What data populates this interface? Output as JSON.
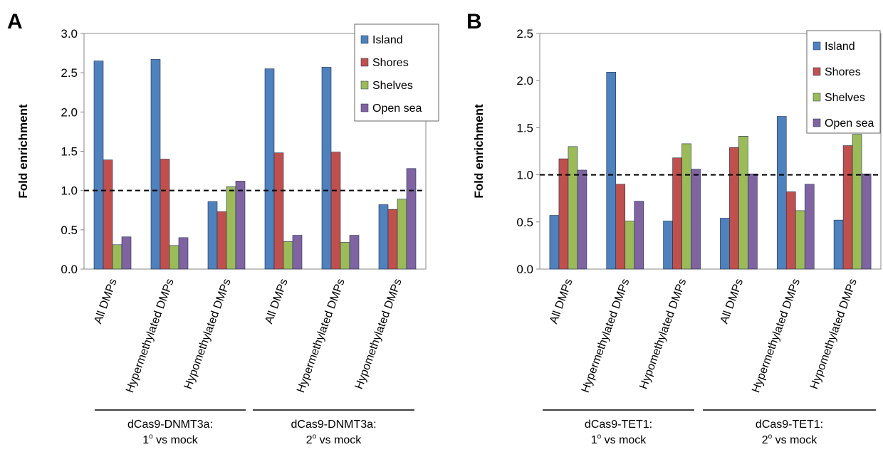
{
  "chart_data": [
    {
      "type": "bar",
      "panel_label": "A",
      "ylabel": "Fold enrichment",
      "ylim": [
        0,
        3.0
      ],
      "yticks": [
        "0.0",
        "0.5",
        "1.0",
        "1.5",
        "2.0",
        "2.5",
        "3.0"
      ],
      "reference_line": 1.0,
      "categories": [
        "All DMPs",
        "Hypermethylated DMPs",
        "Hypomethylated DMPs",
        "All DMPs",
        "Hypermethylated DMPs",
        "Hypomethylated DMPs"
      ],
      "series": [
        {
          "name": "Island",
          "color": "#4f81bd",
          "values": [
            2.65,
            2.67,
            0.86,
            2.55,
            2.57,
            0.82
          ]
        },
        {
          "name": "Shores",
          "color": "#c0504d",
          "values": [
            1.39,
            1.4,
            0.73,
            1.48,
            1.49,
            0.76
          ]
        },
        {
          "name": "Shelves",
          "color": "#9bbb59",
          "values": [
            0.31,
            0.3,
            1.05,
            0.35,
            0.34,
            0.89
          ]
        },
        {
          "name": "Open sea",
          "color": "#8064a2",
          "values": [
            0.41,
            0.4,
            1.12,
            0.43,
            0.43,
            1.28
          ]
        }
      ],
      "legend": "top-right",
      "groups": [
        {
          "line1": "dCas9-DNMT3a:",
          "line2_pre": "1",
          "line2_sup": "o",
          "line2_post": " vs mock"
        },
        {
          "line1": "dCas9-DNMT3a:",
          "line2_pre": "2",
          "line2_sup": "o",
          "line2_post": " vs mock"
        }
      ]
    },
    {
      "type": "bar",
      "panel_label": "B",
      "ylabel": "Fold enrichment",
      "ylim": [
        0,
        2.5
      ],
      "yticks": [
        "0.0",
        "0.5",
        "1.0",
        "1.5",
        "2.0",
        "2.5"
      ],
      "reference_line": 1.0,
      "categories": [
        "All DMPs",
        "Hypermethylated DMPs",
        "Hypomethylated DMPs",
        "All DMPs",
        "Hypermethylated DMPs",
        "Hypomethylated DMPs"
      ],
      "series": [
        {
          "name": "Island",
          "color": "#4f81bd",
          "values": [
            0.57,
            2.09,
            0.51,
            0.54,
            1.62,
            0.52
          ]
        },
        {
          "name": "Shores",
          "color": "#c0504d",
          "values": [
            1.17,
            0.9,
            1.18,
            1.29,
            0.82,
            1.31
          ]
        },
        {
          "name": "Shelves",
          "color": "#9bbb59",
          "values": [
            1.3,
            0.51,
            1.33,
            1.41,
            0.62,
            1.43
          ]
        },
        {
          "name": "Open sea",
          "color": "#8064a2",
          "values": [
            1.05,
            0.72,
            1.06,
            1.01,
            0.9,
            1.01
          ]
        }
      ],
      "legend": "top-right",
      "groups": [
        {
          "line1": "dCas9-TET1:",
          "line2_pre": "1",
          "line2_sup": "o",
          "line2_post": " vs mock"
        },
        {
          "line1": "dCas9-TET1:",
          "line2_pre": "2",
          "line2_sup": "o",
          "line2_post": " vs mock"
        }
      ]
    }
  ]
}
